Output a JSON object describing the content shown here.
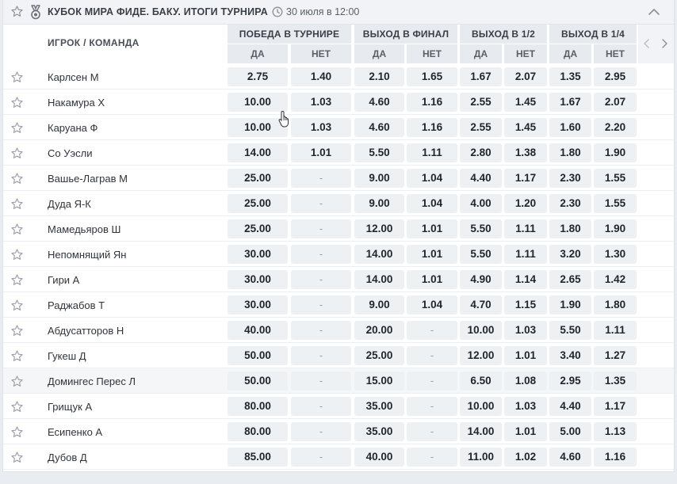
{
  "header": {
    "title": "КУБОК МИРА ФИДЕ. БАКУ. ИТОГИ ТУРНИРА",
    "time": "30 июля в 12:00",
    "icons": {
      "favorite": "star-outline-icon",
      "sport": "medal-icon",
      "time": "clock-icon",
      "collapse": "chevron-up-icon"
    }
  },
  "columns": {
    "player_header": "ИГРОК / КОМАНДА",
    "groups": [
      {
        "label": "ПОБЕДА В ТУРНИРЕ",
        "yes": "ДА",
        "no": "НЕТ"
      },
      {
        "label": "ВЫХОД В ФИНАЛ",
        "yes": "ДА",
        "no": "НЕТ"
      },
      {
        "label": "ВЫХОД В 1/2",
        "yes": "ДА",
        "no": "НЕТ"
      },
      {
        "label": "ВЫХОД В 1/4",
        "yes": "ДА",
        "no": "НЕТ"
      }
    ],
    "nav": {
      "prev": "‹",
      "next": "›"
    }
  },
  "rows": [
    {
      "name": "Карлсен М",
      "odds": [
        "2.75",
        "1.40",
        "2.10",
        "1.65",
        "1.67",
        "2.07",
        "1.35",
        "2.95"
      ]
    },
    {
      "name": "Накамура Х",
      "odds": [
        "10.00",
        "1.03",
        "4.60",
        "1.16",
        "2.55",
        "1.45",
        "1.67",
        "2.07"
      ]
    },
    {
      "name": "Каруана Ф",
      "odds": [
        "10.00",
        "1.03",
        "4.60",
        "1.16",
        "2.55",
        "1.45",
        "1.60",
        "2.20"
      ]
    },
    {
      "name": "Со Уэсли",
      "odds": [
        "14.00",
        "1.01",
        "5.50",
        "1.11",
        "2.80",
        "1.38",
        "1.80",
        "1.90"
      ]
    },
    {
      "name": "Вашье-Лаграв М",
      "odds": [
        "25.00",
        "-",
        "9.00",
        "1.04",
        "4.40",
        "1.17",
        "2.30",
        "1.55"
      ]
    },
    {
      "name": "Дуда Я-К",
      "odds": [
        "25.00",
        "-",
        "9.00",
        "1.04",
        "4.00",
        "1.20",
        "2.30",
        "1.55"
      ]
    },
    {
      "name": "Мамедьяров Ш",
      "odds": [
        "25.00",
        "-",
        "12.00",
        "1.01",
        "5.50",
        "1.11",
        "1.80",
        "1.90"
      ]
    },
    {
      "name": "Непомнящий Ян",
      "odds": [
        "30.00",
        "-",
        "14.00",
        "1.01",
        "5.50",
        "1.11",
        "3.20",
        "1.30"
      ]
    },
    {
      "name": "Гири А",
      "odds": [
        "30.00",
        "-",
        "14.00",
        "1.01",
        "4.90",
        "1.14",
        "2.65",
        "1.42"
      ]
    },
    {
      "name": "Раджабов Т",
      "odds": [
        "30.00",
        "-",
        "9.00",
        "1.04",
        "4.70",
        "1.15",
        "1.90",
        "1.80"
      ]
    },
    {
      "name": "Абдусатторов Н",
      "odds": [
        "40.00",
        "-",
        "20.00",
        "-",
        "10.00",
        "1.03",
        "5.50",
        "1.11"
      ]
    },
    {
      "name": "Гукеш Д",
      "odds": [
        "50.00",
        "-",
        "25.00",
        "-",
        "12.00",
        "1.01",
        "3.40",
        "1.27"
      ]
    },
    {
      "name": "Домингес Перес Л",
      "odds": [
        "50.00",
        "-",
        "15.00",
        "-",
        "6.50",
        "1.08",
        "2.95",
        "1.35"
      ]
    },
    {
      "name": "Грищук А",
      "odds": [
        "80.00",
        "-",
        "35.00",
        "-",
        "10.00",
        "1.03",
        "4.40",
        "1.17"
      ]
    },
    {
      "name": "Есипенко А",
      "odds": [
        "80.00",
        "-",
        "35.00",
        "-",
        "14.00",
        "1.01",
        "5.00",
        "1.13"
      ]
    },
    {
      "name": "Дубов Д",
      "odds": [
        "85.00",
        "-",
        "40.00",
        "-",
        "11.00",
        "1.02",
        "4.60",
        "1.16"
      ]
    }
  ],
  "highlighted_row": 12,
  "colors": {
    "header_bg": "#f1f3f6",
    "cell_bg": "#eef1f4",
    "column_header_bg": "#e7eaee",
    "text": "#22262c"
  }
}
